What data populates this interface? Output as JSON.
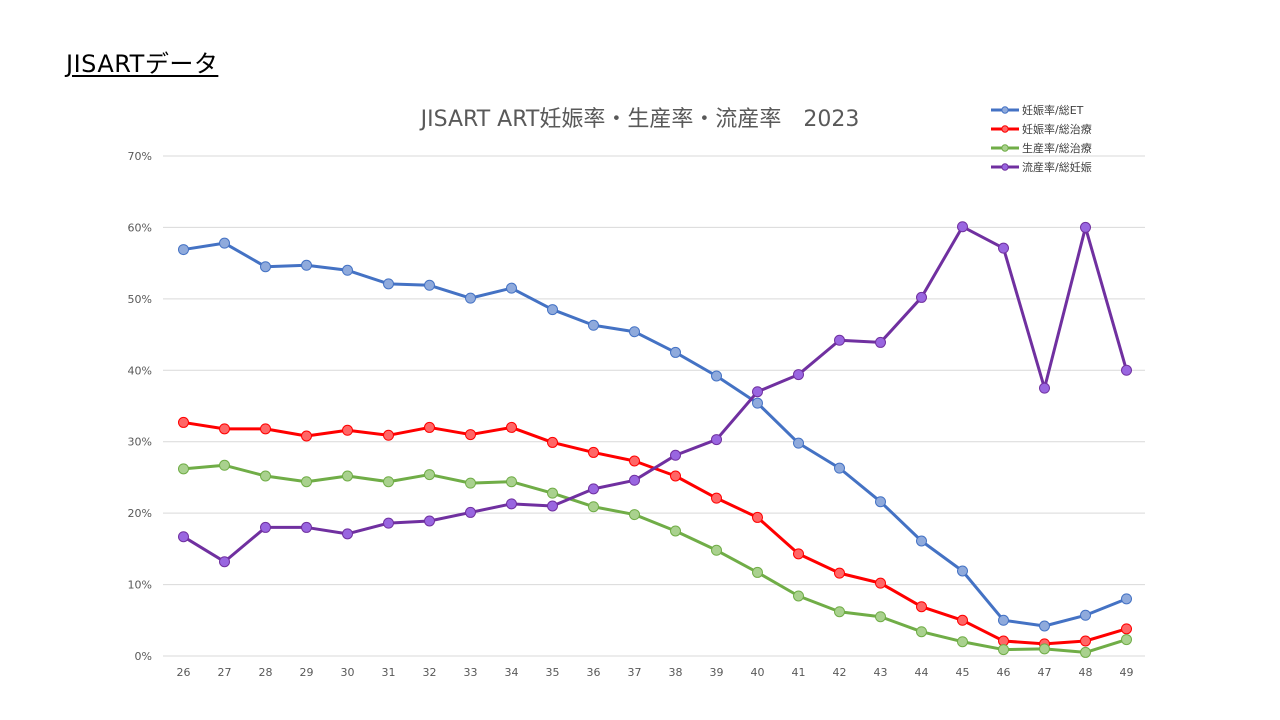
{
  "page": {
    "heading": "JISARTデータ"
  },
  "colors": {
    "grid": "#d9d9d9",
    "axis_text": "#595959",
    "title_text": "#595959"
  },
  "chart_data": {
    "type": "line",
    "title": "JISART  ART妊娠率・生産率・流産率　2023",
    "xlabel": "",
    "ylabel": "",
    "ylim": [
      0,
      70
    ],
    "y_tick_step": 10,
    "y_tick_format": "percent",
    "grid": true,
    "legend_position": "top-right",
    "categories": [
      "26",
      "27",
      "28",
      "29",
      "30",
      "31",
      "32",
      "33",
      "34",
      "35",
      "36",
      "37",
      "38",
      "39",
      "40",
      "41",
      "42",
      "43",
      "44",
      "45",
      "46",
      "47",
      "48",
      "49"
    ],
    "series": [
      {
        "name": "妊娠率/総ET",
        "color": "#4472c4",
        "marker_color": "#8faadc",
        "values": [
          56.9,
          57.8,
          54.5,
          54.7,
          54.0,
          52.1,
          51.9,
          50.1,
          51.5,
          48.5,
          46.3,
          45.4,
          42.5,
          39.2,
          35.4,
          29.8,
          26.3,
          21.6,
          16.1,
          11.9,
          5.0,
          4.2,
          5.7,
          8.0
        ]
      },
      {
        "name": "妊娠率/総治療",
        "color": "#ff0000",
        "marker_color": "#ff6666",
        "values": [
          32.7,
          31.8,
          31.8,
          30.8,
          31.6,
          30.9,
          32.0,
          31.0,
          32.0,
          29.9,
          28.5,
          27.3,
          25.2,
          22.1,
          19.4,
          14.3,
          11.6,
          10.2,
          6.9,
          5.0,
          2.1,
          1.7,
          2.1,
          3.8
        ]
      },
      {
        "name": "生産率/総治療",
        "color": "#70ad47",
        "marker_color": "#a9d18e",
        "values": [
          26.2,
          26.7,
          25.2,
          24.4,
          25.2,
          24.4,
          25.4,
          24.2,
          24.4,
          22.8,
          20.9,
          19.8,
          17.5,
          14.8,
          11.7,
          8.4,
          6.2,
          5.5,
          3.4,
          2.0,
          0.9,
          1.0,
          0.5,
          2.3
        ]
      },
      {
        "name": "流産率/総妊娠",
        "color": "#7030a0",
        "marker_color": "#9966e0",
        "values": [
          16.7,
          13.2,
          18.0,
          18.0,
          17.1,
          18.6,
          18.9,
          20.1,
          21.3,
          21.0,
          23.4,
          24.6,
          28.1,
          30.3,
          37.0,
          39.4,
          44.2,
          43.9,
          50.2,
          60.1,
          57.1,
          37.5,
          60.0,
          40.0
        ]
      }
    ]
  }
}
